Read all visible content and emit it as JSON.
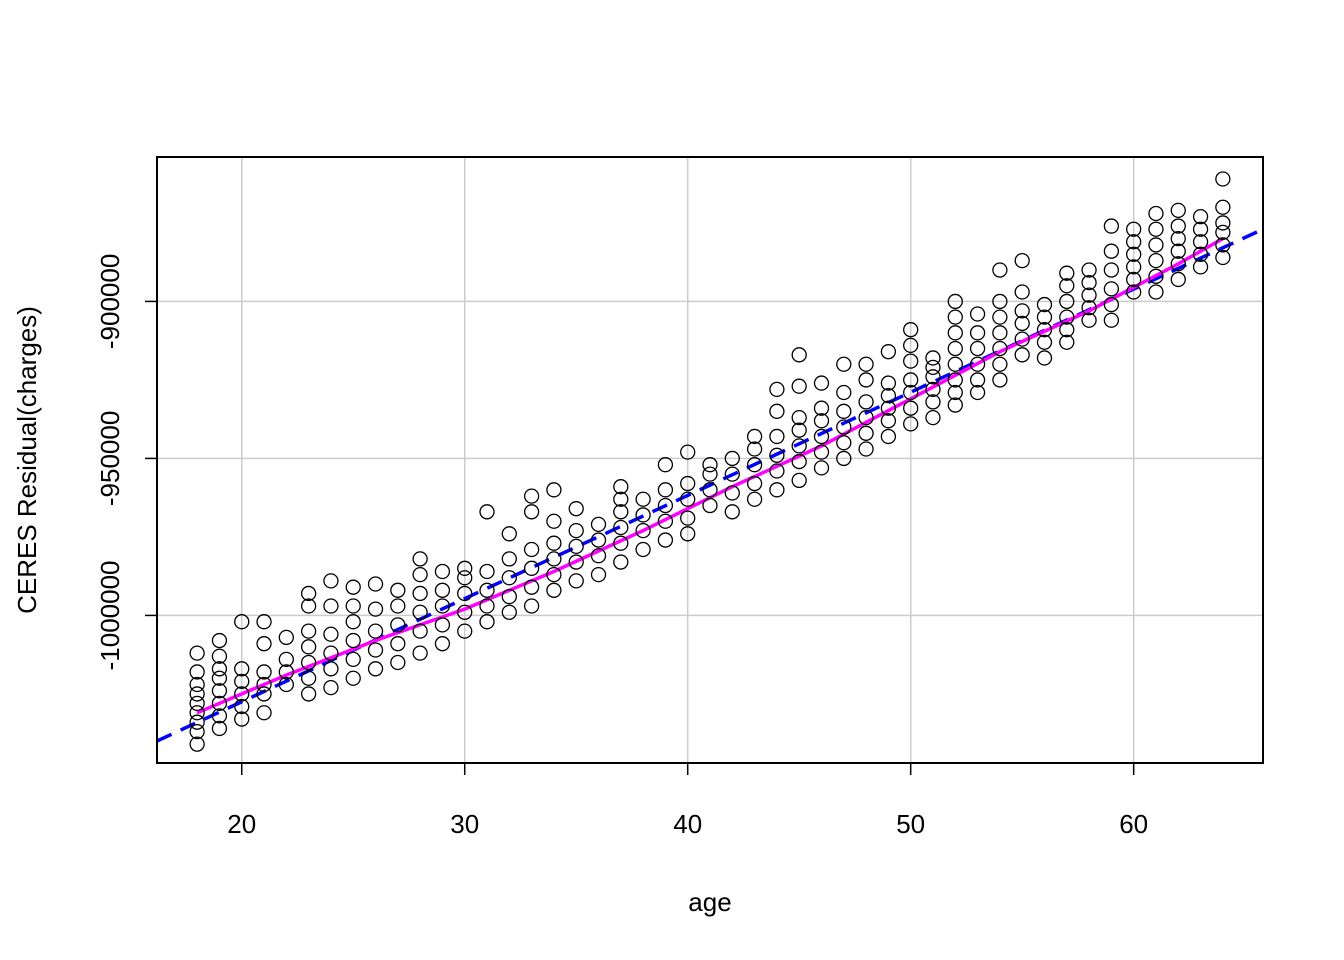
{
  "chart_data": {
    "type": "scatter",
    "xlabel": "age",
    "ylabel": "CERES Residual(charges)",
    "xlim": [
      16.2,
      65.8
    ],
    "ylim": [
      -1047000,
      -854000
    ],
    "xticks": [
      20,
      30,
      40,
      50,
      60
    ],
    "yticks": [
      -1000000,
      -950000,
      -900000
    ],
    "xtick_labels": [
      "20",
      "30",
      "40",
      "50",
      "60"
    ],
    "ytick_labels": [
      "-1000000",
      "-950000",
      "-900000"
    ],
    "grid": true,
    "point_marker": "open-circle",
    "point_color": "#000000",
    "points": [
      {
        "x": 18,
        "y": -1041000
      },
      {
        "x": 18,
        "y": -1037000
      },
      {
        "x": 18,
        "y": -1034000
      },
      {
        "x": 18,
        "y": -1031000
      },
      {
        "x": 18,
        "y": -1028000
      },
      {
        "x": 18,
        "y": -1025000
      },
      {
        "x": 18,
        "y": -1022000
      },
      {
        "x": 18,
        "y": -1018000
      },
      {
        "x": 18,
        "y": -1012000
      },
      {
        "x": 19,
        "y": -1036000
      },
      {
        "x": 19,
        "y": -1032000
      },
      {
        "x": 19,
        "y": -1028000
      },
      {
        "x": 19,
        "y": -1024000
      },
      {
        "x": 19,
        "y": -1020000
      },
      {
        "x": 19,
        "y": -1017000
      },
      {
        "x": 19,
        "y": -1013000
      },
      {
        "x": 19,
        "y": -1008000
      },
      {
        "x": 20,
        "y": -1033000
      },
      {
        "x": 20,
        "y": -1029000
      },
      {
        "x": 20,
        "y": -1025000
      },
      {
        "x": 20,
        "y": -1021000
      },
      {
        "x": 20,
        "y": -1017000
      },
      {
        "x": 20,
        "y": -1002000
      },
      {
        "x": 21,
        "y": -1031000
      },
      {
        "x": 21,
        "y": -1025000
      },
      {
        "x": 21,
        "y": -1022000
      },
      {
        "x": 21,
        "y": -1018000
      },
      {
        "x": 21,
        "y": -1009000
      },
      {
        "x": 21,
        "y": -1002000
      },
      {
        "x": 22,
        "y": -1022000
      },
      {
        "x": 22,
        "y": -1018000
      },
      {
        "x": 22,
        "y": -1014000
      },
      {
        "x": 22,
        "y": -1007000
      },
      {
        "x": 23,
        "y": -1025000
      },
      {
        "x": 23,
        "y": -1020000
      },
      {
        "x": 23,
        "y": -1015000
      },
      {
        "x": 23,
        "y": -1010000
      },
      {
        "x": 23,
        "y": -1005000
      },
      {
        "x": 23,
        "y": -997000
      },
      {
        "x": 23,
        "y": -993000
      },
      {
        "x": 24,
        "y": -1023000
      },
      {
        "x": 24,
        "y": -1017000
      },
      {
        "x": 24,
        "y": -1012000
      },
      {
        "x": 24,
        "y": -1006000
      },
      {
        "x": 24,
        "y": -997000
      },
      {
        "x": 24,
        "y": -989000
      },
      {
        "x": 25,
        "y": -1020000
      },
      {
        "x": 25,
        "y": -1014000
      },
      {
        "x": 25,
        "y": -1008000
      },
      {
        "x": 25,
        "y": -1002000
      },
      {
        "x": 25,
        "y": -997000
      },
      {
        "x": 25,
        "y": -991000
      },
      {
        "x": 26,
        "y": -1017000
      },
      {
        "x": 26,
        "y": -1011000
      },
      {
        "x": 26,
        "y": -1005000
      },
      {
        "x": 26,
        "y": -998000
      },
      {
        "x": 26,
        "y": -990000
      },
      {
        "x": 27,
        "y": -1015000
      },
      {
        "x": 27,
        "y": -1009000
      },
      {
        "x": 27,
        "y": -1003000
      },
      {
        "x": 27,
        "y": -997000
      },
      {
        "x": 27,
        "y": -992000
      },
      {
        "x": 28,
        "y": -1012000
      },
      {
        "x": 28,
        "y": -1005000
      },
      {
        "x": 28,
        "y": -999000
      },
      {
        "x": 28,
        "y": -993000
      },
      {
        "x": 28,
        "y": -987000
      },
      {
        "x": 28,
        "y": -982000
      },
      {
        "x": 29,
        "y": -1009000
      },
      {
        "x": 29,
        "y": -1003000
      },
      {
        "x": 29,
        "y": -997000
      },
      {
        "x": 29,
        "y": -992000
      },
      {
        "x": 29,
        "y": -986000
      },
      {
        "x": 30,
        "y": -1005000
      },
      {
        "x": 30,
        "y": -999000
      },
      {
        "x": 30,
        "y": -993000
      },
      {
        "x": 30,
        "y": -988000
      },
      {
        "x": 30,
        "y": -985000
      },
      {
        "x": 31,
        "y": -1002000
      },
      {
        "x": 31,
        "y": -997000
      },
      {
        "x": 31,
        "y": -992000
      },
      {
        "x": 31,
        "y": -986000
      },
      {
        "x": 31,
        "y": -967000
      },
      {
        "x": 32,
        "y": -999000
      },
      {
        "x": 32,
        "y": -994000
      },
      {
        "x": 32,
        "y": -988000
      },
      {
        "x": 32,
        "y": -982000
      },
      {
        "x": 32,
        "y": -974000
      },
      {
        "x": 33,
        "y": -997000
      },
      {
        "x": 33,
        "y": -991000
      },
      {
        "x": 33,
        "y": -985000
      },
      {
        "x": 33,
        "y": -979000
      },
      {
        "x": 33,
        "y": -967000
      },
      {
        "x": 33,
        "y": -962000
      },
      {
        "x": 34,
        "y": -992000
      },
      {
        "x": 34,
        "y": -987000
      },
      {
        "x": 34,
        "y": -982000
      },
      {
        "x": 34,
        "y": -977000
      },
      {
        "x": 34,
        "y": -970000
      },
      {
        "x": 34,
        "y": -960000
      },
      {
        "x": 35,
        "y": -989000
      },
      {
        "x": 35,
        "y": -983000
      },
      {
        "x": 35,
        "y": -978000
      },
      {
        "x": 35,
        "y": -973000
      },
      {
        "x": 35,
        "y": -966000
      },
      {
        "x": 36,
        "y": -987000
      },
      {
        "x": 36,
        "y": -981000
      },
      {
        "x": 36,
        "y": -976000
      },
      {
        "x": 36,
        "y": -971000
      },
      {
        "x": 37,
        "y": -983000
      },
      {
        "x": 37,
        "y": -977000
      },
      {
        "x": 37,
        "y": -972000
      },
      {
        "x": 37,
        "y": -967000
      },
      {
        "x": 37,
        "y": -963000
      },
      {
        "x": 37,
        "y": -959000
      },
      {
        "x": 38,
        "y": -979000
      },
      {
        "x": 38,
        "y": -973000
      },
      {
        "x": 38,
        "y": -968000
      },
      {
        "x": 38,
        "y": -963000
      },
      {
        "x": 39,
        "y": -976000
      },
      {
        "x": 39,
        "y": -970000
      },
      {
        "x": 39,
        "y": -965000
      },
      {
        "x": 39,
        "y": -960000
      },
      {
        "x": 39,
        "y": -952000
      },
      {
        "x": 40,
        "y": -974000
      },
      {
        "x": 40,
        "y": -969000
      },
      {
        "x": 40,
        "y": -963000
      },
      {
        "x": 40,
        "y": -958000
      },
      {
        "x": 40,
        "y": -948000
      },
      {
        "x": 41,
        "y": -965000
      },
      {
        "x": 41,
        "y": -960000
      },
      {
        "x": 41,
        "y": -955000
      },
      {
        "x": 41,
        "y": -952000
      },
      {
        "x": 42,
        "y": -967000
      },
      {
        "x": 42,
        "y": -961000
      },
      {
        "x": 42,
        "y": -955000
      },
      {
        "x": 42,
        "y": -950000
      },
      {
        "x": 43,
        "y": -963000
      },
      {
        "x": 43,
        "y": -958000
      },
      {
        "x": 43,
        "y": -952000
      },
      {
        "x": 43,
        "y": -947000
      },
      {
        "x": 43,
        "y": -943000
      },
      {
        "x": 44,
        "y": -960000
      },
      {
        "x": 44,
        "y": -954000
      },
      {
        "x": 44,
        "y": -949000
      },
      {
        "x": 44,
        "y": -943000
      },
      {
        "x": 44,
        "y": -935000
      },
      {
        "x": 44,
        "y": -928000
      },
      {
        "x": 45,
        "y": -957000
      },
      {
        "x": 45,
        "y": -951000
      },
      {
        "x": 45,
        "y": -946000
      },
      {
        "x": 45,
        "y": -941000
      },
      {
        "x": 45,
        "y": -937000
      },
      {
        "x": 45,
        "y": -927000
      },
      {
        "x": 45,
        "y": -917000
      },
      {
        "x": 46,
        "y": -953000
      },
      {
        "x": 46,
        "y": -948000
      },
      {
        "x": 46,
        "y": -943000
      },
      {
        "x": 46,
        "y": -938000
      },
      {
        "x": 46,
        "y": -934000
      },
      {
        "x": 46,
        "y": -926000
      },
      {
        "x": 47,
        "y": -950000
      },
      {
        "x": 47,
        "y": -945000
      },
      {
        "x": 47,
        "y": -940000
      },
      {
        "x": 47,
        "y": -935000
      },
      {
        "x": 47,
        "y": -929000
      },
      {
        "x": 47,
        "y": -920000
      },
      {
        "x": 48,
        "y": -947000
      },
      {
        "x": 48,
        "y": -942000
      },
      {
        "x": 48,
        "y": -937000
      },
      {
        "x": 48,
        "y": -932000
      },
      {
        "x": 48,
        "y": -925000
      },
      {
        "x": 48,
        "y": -920000
      },
      {
        "x": 49,
        "y": -943000
      },
      {
        "x": 49,
        "y": -938000
      },
      {
        "x": 49,
        "y": -934000
      },
      {
        "x": 49,
        "y": -930000
      },
      {
        "x": 49,
        "y": -926000
      },
      {
        "x": 49,
        "y": -916000
      },
      {
        "x": 50,
        "y": -939000
      },
      {
        "x": 50,
        "y": -934000
      },
      {
        "x": 50,
        "y": -929000
      },
      {
        "x": 50,
        "y": -925000
      },
      {
        "x": 50,
        "y": -919000
      },
      {
        "x": 50,
        "y": -914000
      },
      {
        "x": 50,
        "y": -909000
      },
      {
        "x": 51,
        "y": -937000
      },
      {
        "x": 51,
        "y": -932000
      },
      {
        "x": 51,
        "y": -928000
      },
      {
        "x": 51,
        "y": -924000
      },
      {
        "x": 51,
        "y": -921000
      },
      {
        "x": 51,
        "y": -918000
      },
      {
        "x": 52,
        "y": -933000
      },
      {
        "x": 52,
        "y": -929000
      },
      {
        "x": 52,
        "y": -925000
      },
      {
        "x": 52,
        "y": -920000
      },
      {
        "x": 52,
        "y": -915000
      },
      {
        "x": 52,
        "y": -910000
      },
      {
        "x": 52,
        "y": -905000
      },
      {
        "x": 52,
        "y": -900000
      },
      {
        "x": 53,
        "y": -929000
      },
      {
        "x": 53,
        "y": -925000
      },
      {
        "x": 53,
        "y": -920000
      },
      {
        "x": 53,
        "y": -915000
      },
      {
        "x": 53,
        "y": -910000
      },
      {
        "x": 53,
        "y": -904000
      },
      {
        "x": 54,
        "y": -925000
      },
      {
        "x": 54,
        "y": -920000
      },
      {
        "x": 54,
        "y": -915000
      },
      {
        "x": 54,
        "y": -910000
      },
      {
        "x": 54,
        "y": -905000
      },
      {
        "x": 54,
        "y": -900000
      },
      {
        "x": 54,
        "y": -890000
      },
      {
        "x": 55,
        "y": -917000
      },
      {
        "x": 55,
        "y": -912000
      },
      {
        "x": 55,
        "y": -907000
      },
      {
        "x": 55,
        "y": -903000
      },
      {
        "x": 55,
        "y": -897000
      },
      {
        "x": 55,
        "y": -887000
      },
      {
        "x": 56,
        "y": -918000
      },
      {
        "x": 56,
        "y": -913000
      },
      {
        "x": 56,
        "y": -909000
      },
      {
        "x": 56,
        "y": -905000
      },
      {
        "x": 56,
        "y": -901000
      },
      {
        "x": 57,
        "y": -913000
      },
      {
        "x": 57,
        "y": -909000
      },
      {
        "x": 57,
        "y": -905000
      },
      {
        "x": 57,
        "y": -900000
      },
      {
        "x": 57,
        "y": -895000
      },
      {
        "x": 57,
        "y": -891000
      },
      {
        "x": 58,
        "y": -906000
      },
      {
        "x": 58,
        "y": -902000
      },
      {
        "x": 58,
        "y": -898000
      },
      {
        "x": 58,
        "y": -894000
      },
      {
        "x": 58,
        "y": -890000
      },
      {
        "x": 59,
        "y": -906000
      },
      {
        "x": 59,
        "y": -901000
      },
      {
        "x": 59,
        "y": -896000
      },
      {
        "x": 59,
        "y": -890000
      },
      {
        "x": 59,
        "y": -884000
      },
      {
        "x": 59,
        "y": -876000
      },
      {
        "x": 60,
        "y": -897000
      },
      {
        "x": 60,
        "y": -893000
      },
      {
        "x": 60,
        "y": -889000
      },
      {
        "x": 60,
        "y": -885000
      },
      {
        "x": 60,
        "y": -881000
      },
      {
        "x": 60,
        "y": -877000
      },
      {
        "x": 61,
        "y": -897000
      },
      {
        "x": 61,
        "y": -892000
      },
      {
        "x": 61,
        "y": -887000
      },
      {
        "x": 61,
        "y": -882000
      },
      {
        "x": 61,
        "y": -877000
      },
      {
        "x": 61,
        "y": -872000
      },
      {
        "x": 62,
        "y": -893000
      },
      {
        "x": 62,
        "y": -888000
      },
      {
        "x": 62,
        "y": -884000
      },
      {
        "x": 62,
        "y": -880000
      },
      {
        "x": 62,
        "y": -876000
      },
      {
        "x": 62,
        "y": -871000
      },
      {
        "x": 63,
        "y": -889000
      },
      {
        "x": 63,
        "y": -885000
      },
      {
        "x": 63,
        "y": -881000
      },
      {
        "x": 63,
        "y": -877000
      },
      {
        "x": 63,
        "y": -873000
      },
      {
        "x": 64,
        "y": -886000
      },
      {
        "x": 64,
        "y": -882000
      },
      {
        "x": 64,
        "y": -878000
      },
      {
        "x": 64,
        "y": -875000
      },
      {
        "x": 64,
        "y": -870000
      },
      {
        "x": 64,
        "y": -861000
      }
    ],
    "lines": [
      {
        "style": "dashed",
        "color": "#0000ff",
        "points": [
          [
            16.2,
            -1040000
          ],
          [
            65.8,
            -877000
          ]
        ]
      },
      {
        "style": "solid",
        "color": "#ff00ff",
        "points": [
          [
            18,
            -1031000
          ],
          [
            22,
            -1019000
          ],
          [
            26,
            -1008000
          ],
          [
            30,
            -998000
          ],
          [
            34,
            -986000
          ],
          [
            38,
            -973000
          ],
          [
            42,
            -959000
          ],
          [
            46,
            -946000
          ],
          [
            50,
            -931000
          ],
          [
            54,
            -916000
          ],
          [
            58,
            -903000
          ],
          [
            62,
            -888000
          ],
          [
            64,
            -880000
          ]
        ]
      }
    ]
  }
}
